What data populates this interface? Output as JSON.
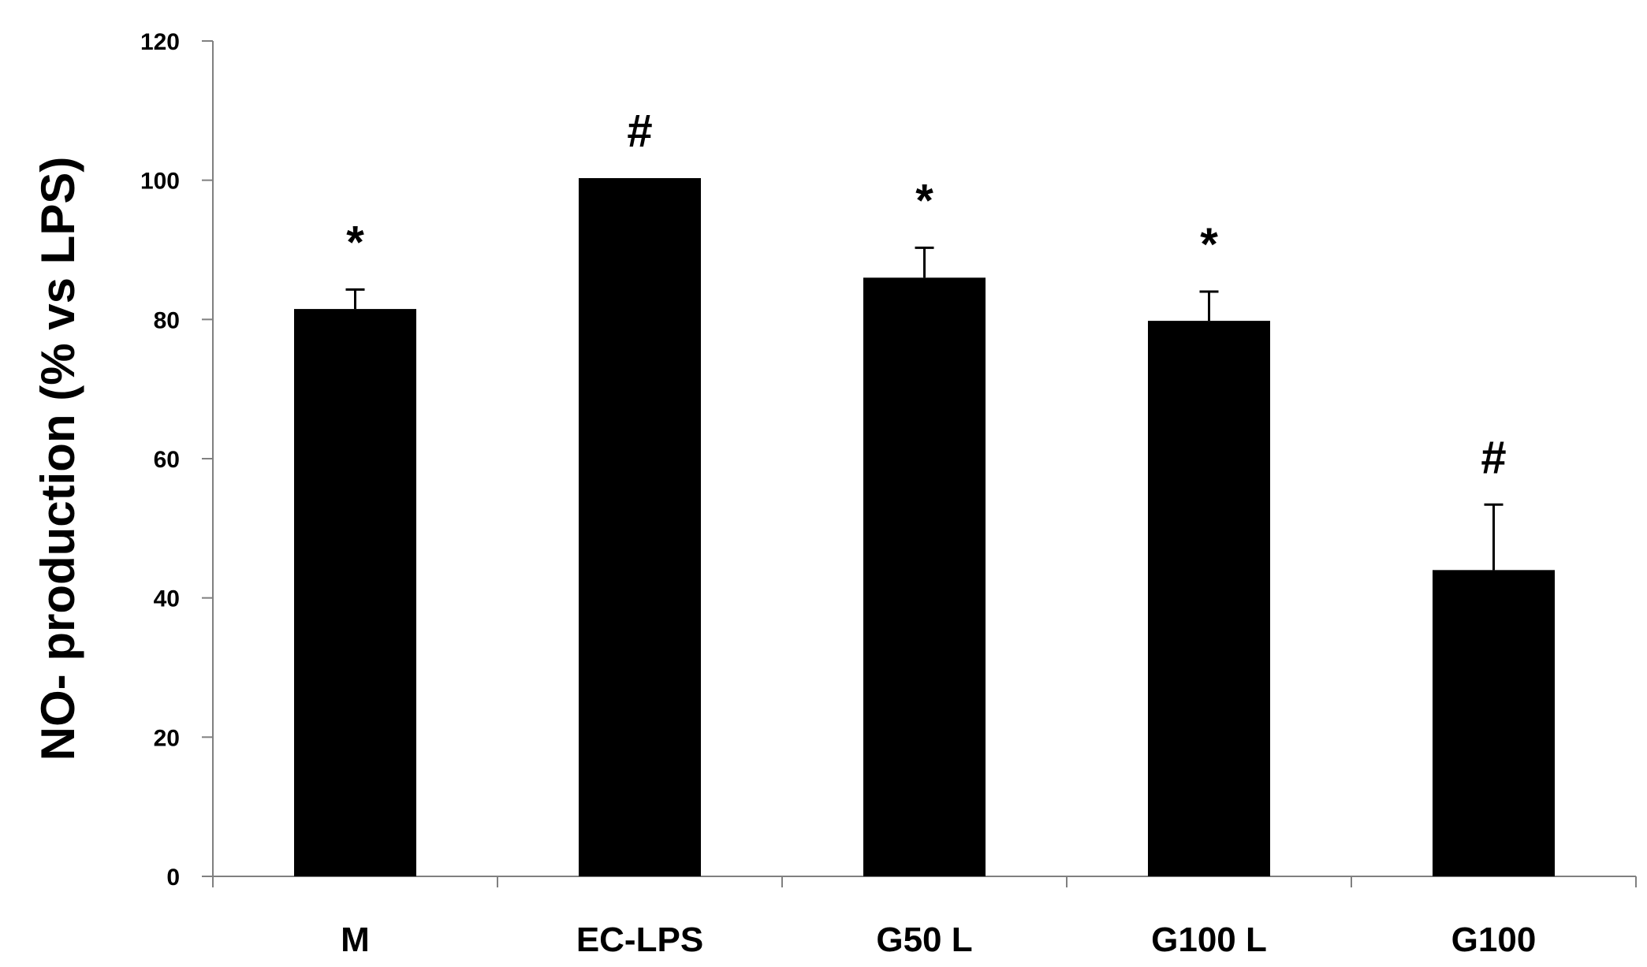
{
  "chart_data": {
    "type": "bar",
    "title": "",
    "xlabel": "",
    "ylabel": "NO- production (% vs LPS)",
    "ylim": [
      0,
      120
    ],
    "yticks": [
      0,
      20,
      40,
      60,
      80,
      100,
      120
    ],
    "grid": false,
    "legend": "none",
    "bar_color": "#000000",
    "categories": [
      "M",
      "EC-LPS",
      "G50 L",
      "G100 L",
      "G100"
    ],
    "values": [
      81.5,
      100.3,
      86.0,
      79.8,
      44.0
    ],
    "errors": [
      2.8,
      0,
      4.3,
      4.2,
      9.4
    ],
    "annotations": [
      "*",
      "#",
      "*",
      "*",
      "#"
    ]
  }
}
